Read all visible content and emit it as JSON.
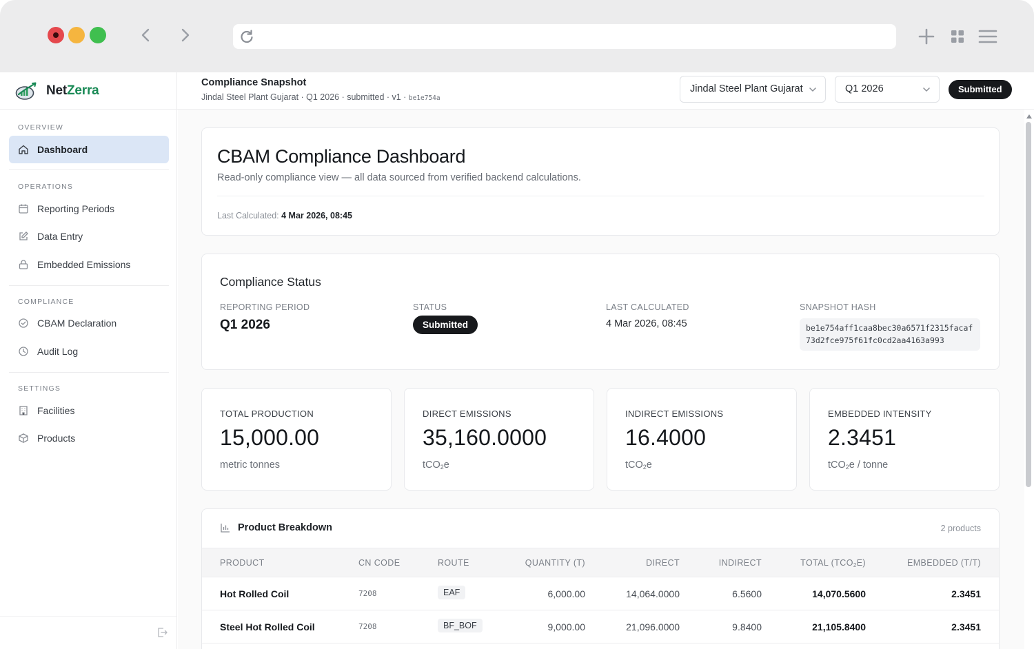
{
  "brand": {
    "name_a": "Net",
    "name_b": "Zerra"
  },
  "topbar": {
    "title": "Compliance Snapshot",
    "subtitle": "Jindal Steel Plant Gujarat · Q1 2026 · submitted · v1 · ",
    "subtitle_hash": "be1e754a",
    "plant_select": "Jindal Steel Plant Gujarat",
    "period_select": "Q1 2026",
    "status_badge": "Submitted"
  },
  "sidebar": {
    "sections": [
      {
        "label": "OVERVIEW",
        "items": [
          {
            "label": "Dashboard",
            "icon": "home-icon",
            "active": true
          }
        ]
      },
      {
        "label": "OPERATIONS",
        "items": [
          {
            "label": "Reporting Periods",
            "icon": "calendar-icon"
          },
          {
            "label": "Data Entry",
            "icon": "edit-icon"
          },
          {
            "label": "Embedded Emissions",
            "icon": "lock-icon"
          }
        ]
      },
      {
        "label": "COMPLIANCE",
        "items": [
          {
            "label": "CBAM Declaration",
            "icon": "check-circle-icon"
          },
          {
            "label": "Audit Log",
            "icon": "clock-icon"
          }
        ]
      },
      {
        "label": "SETTINGS",
        "items": [
          {
            "label": "Facilities",
            "icon": "building-icon"
          },
          {
            "label": "Products",
            "icon": "box-icon"
          }
        ]
      }
    ]
  },
  "hero": {
    "title": "CBAM Compliance Dashboard",
    "description": "Read-only compliance view — all data sourced from verified backend calculations.",
    "last_calc_label": "Last Calculated:",
    "last_calc_value": "4 Mar 2026, 08:45"
  },
  "status": {
    "title": "Compliance Status",
    "reporting_period_label": "REPORTING PERIOD",
    "reporting_period": "Q1 2026",
    "status_label": "STATUS",
    "status_value": "Submitted",
    "last_calculated_label": "LAST CALCULATED",
    "last_calculated": "4 Mar 2026, 08:45",
    "hash_label": "SNAPSHOT HASH",
    "hash_value": "be1e754aff1caa8bec30a6571f2315facaf73d2fce975f61fc0cd2aa4163a993"
  },
  "metrics": [
    {
      "label": "TOTAL PRODUCTION",
      "value": "15,000.00",
      "unit": "metric tonnes"
    },
    {
      "label": "DIRECT EMISSIONS",
      "value": "35,160.0000",
      "unit_a": "tCO",
      "unit_sub": "2",
      "unit_b": "e"
    },
    {
      "label": "INDIRECT EMISSIONS",
      "value": "16.4000",
      "unit_a": "tCO",
      "unit_sub": "2",
      "unit_b": "e"
    },
    {
      "label": "EMBEDDED INTENSITY",
      "value": "2.3451",
      "unit_a": "tCO",
      "unit_sub": "2",
      "unit_b": "e / tonne"
    }
  ],
  "products": {
    "title": "Product Breakdown",
    "count": "2 products",
    "columns": {
      "product": "PRODUCT",
      "cn_code": "CN CODE",
      "route": "ROUTE",
      "quantity": "QUANTITY (T)",
      "direct": "DIRECT",
      "indirect": "INDIRECT",
      "total_a": "TOTAL (TCO",
      "total_sub": "2",
      "total_b": "E)",
      "embedded": "EMBEDDED (T/T)"
    },
    "rows": [
      {
        "product": "Hot Rolled Coil",
        "cn_code": "7208",
        "route": "EAF",
        "quantity": "6,000.00",
        "direct": "14,064.0000",
        "indirect": "6.5600",
        "total": "14,070.5600",
        "embedded": "2.3451"
      },
      {
        "product": "Steel Hot Rolled Coil",
        "cn_code": "7208",
        "route": "BF_BOF",
        "quantity": "9,000.00",
        "direct": "21,096.0000",
        "indirect": "9.8400",
        "total": "21,105.8400",
        "embedded": "2.3451"
      }
    ]
  }
}
